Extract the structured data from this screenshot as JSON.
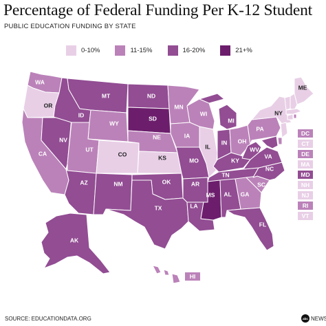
{
  "title": "Percentage of Federal Funding Per K-12 Student",
  "subtitle": "PUBLIC EDUCATION FUNDING BY STATE",
  "legend": [
    {
      "label": "0-10%",
      "color": "#e8cfe6"
    },
    {
      "label": "11-15%",
      "color": "#bb82b9"
    },
    {
      "label": "16-20%",
      "color": "#924d93"
    },
    {
      "label": "21+%",
      "color": "#6c1e6c"
    }
  ],
  "states": {
    "WA": "11-15%",
    "OR": "0-10%",
    "CA": "11-15%",
    "NV": "16-20%",
    "ID": "16-20%",
    "MT": "16-20%",
    "WY": "11-15%",
    "UT": "11-15%",
    "AZ": "16-20%",
    "CO": "0-10%",
    "NM": "16-20%",
    "ND": "16-20%",
    "SD": "21+%",
    "NE": "11-15%",
    "KS": "0-10%",
    "OK": "16-20%",
    "TX": "16-20%",
    "MN": "11-15%",
    "IA": "11-15%",
    "MO": "16-20%",
    "AR": "16-20%",
    "LA": "16-20%",
    "WI": "11-15%",
    "IL": "0-10%",
    "MI": "16-20%",
    "IN": "16-20%",
    "OH": "11-15%",
    "KY": "16-20%",
    "TN": "16-20%",
    "MS": "21+%",
    "AL": "16-20%",
    "GA": "11-15%",
    "FL": "16-20%",
    "SC": "11-15%",
    "NC": "16-20%",
    "VA": "16-20%",
    "WV": "16-20%",
    "PA": "11-15%",
    "NY": "0-10%",
    "ME": "0-10%",
    "AK": "16-20%",
    "HI": "11-15%",
    "DC": "11-15%",
    "CT": "0-10%",
    "DE": "11-15%",
    "MA": "0-10%",
    "MD": "16-20%",
    "NH": "0-10%",
    "NJ": "0-10%",
    "RI": "11-15%",
    "VT": "0-10%"
  },
  "small_states": [
    "DC",
    "CT",
    "DE",
    "MA",
    "MD",
    "NH",
    "NJ",
    "RI",
    "VT"
  ],
  "source": "SOURCE: EDUCATIONDATA.ORG",
  "logo": {
    "mark": "abc",
    "text": "NEWS"
  }
}
